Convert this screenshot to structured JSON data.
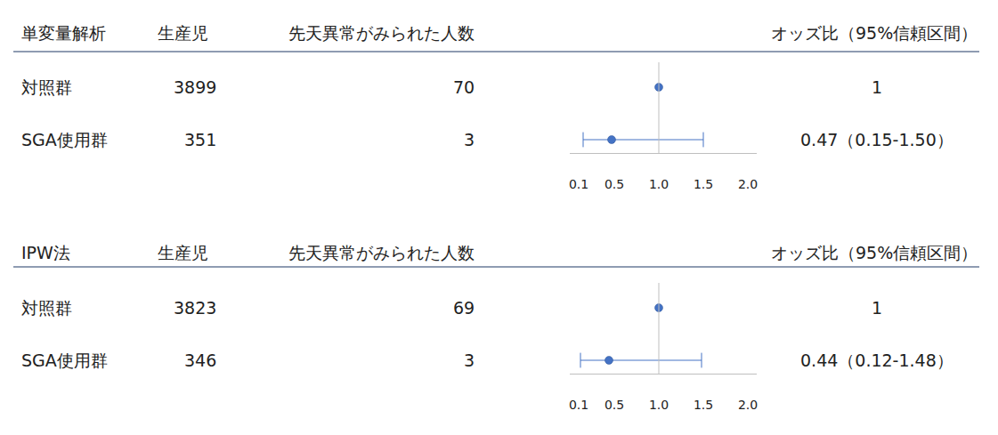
{
  "chart_data": [
    {
      "type": "forest",
      "title": "単変量解析",
      "columns": [
        "生産児",
        "先天異常がみられた人数",
        "オッズ比（95%信頼区間）"
      ],
      "categories": [
        "対照群",
        "SGA使用群"
      ],
      "births": [
        3899,
        351
      ],
      "cases": [
        70,
        3
      ],
      "values": [
        1,
        0.47
      ],
      "ci_low": [
        null,
        0.15
      ],
      "ci_high": [
        null,
        1.5
      ],
      "value_labels": [
        "1",
        "0.47（0.15-1.50）"
      ],
      "color": "#4472c4",
      "grid": false,
      "xlim": [
        0,
        2.1
      ],
      "xticks": [
        0.1,
        0.5,
        {
          "value": 1,
          "label": "1.0"
        },
        1.5,
        {
          "value": 2,
          "label": "2.0"
        }
      ]
    },
    {
      "type": "forest",
      "title": "IPW法",
      "columns": [
        "生産児",
        "先天異常がみられた人数",
        "オッズ比（95%信頼区間）"
      ],
      "categories": [
        "対照群",
        "SGA使用群"
      ],
      "births": [
        3823,
        346
      ],
      "cases": [
        69,
        3
      ],
      "values": [
        1,
        0.44
      ],
      "ci_low": [
        null,
        0.12
      ],
      "ci_high": [
        null,
        1.48
      ],
      "value_labels": [
        "1",
        "0.44（0.12-1.48）"
      ],
      "color": "#4472c4",
      "grid": false,
      "xlim": [
        0,
        2.1
      ],
      "xticks": [
        0.1,
        0.5,
        {
          "value": 1,
          "label": "1.0"
        },
        1.5,
        {
          "value": 2,
          "label": "2.0"
        }
      ]
    }
  ]
}
